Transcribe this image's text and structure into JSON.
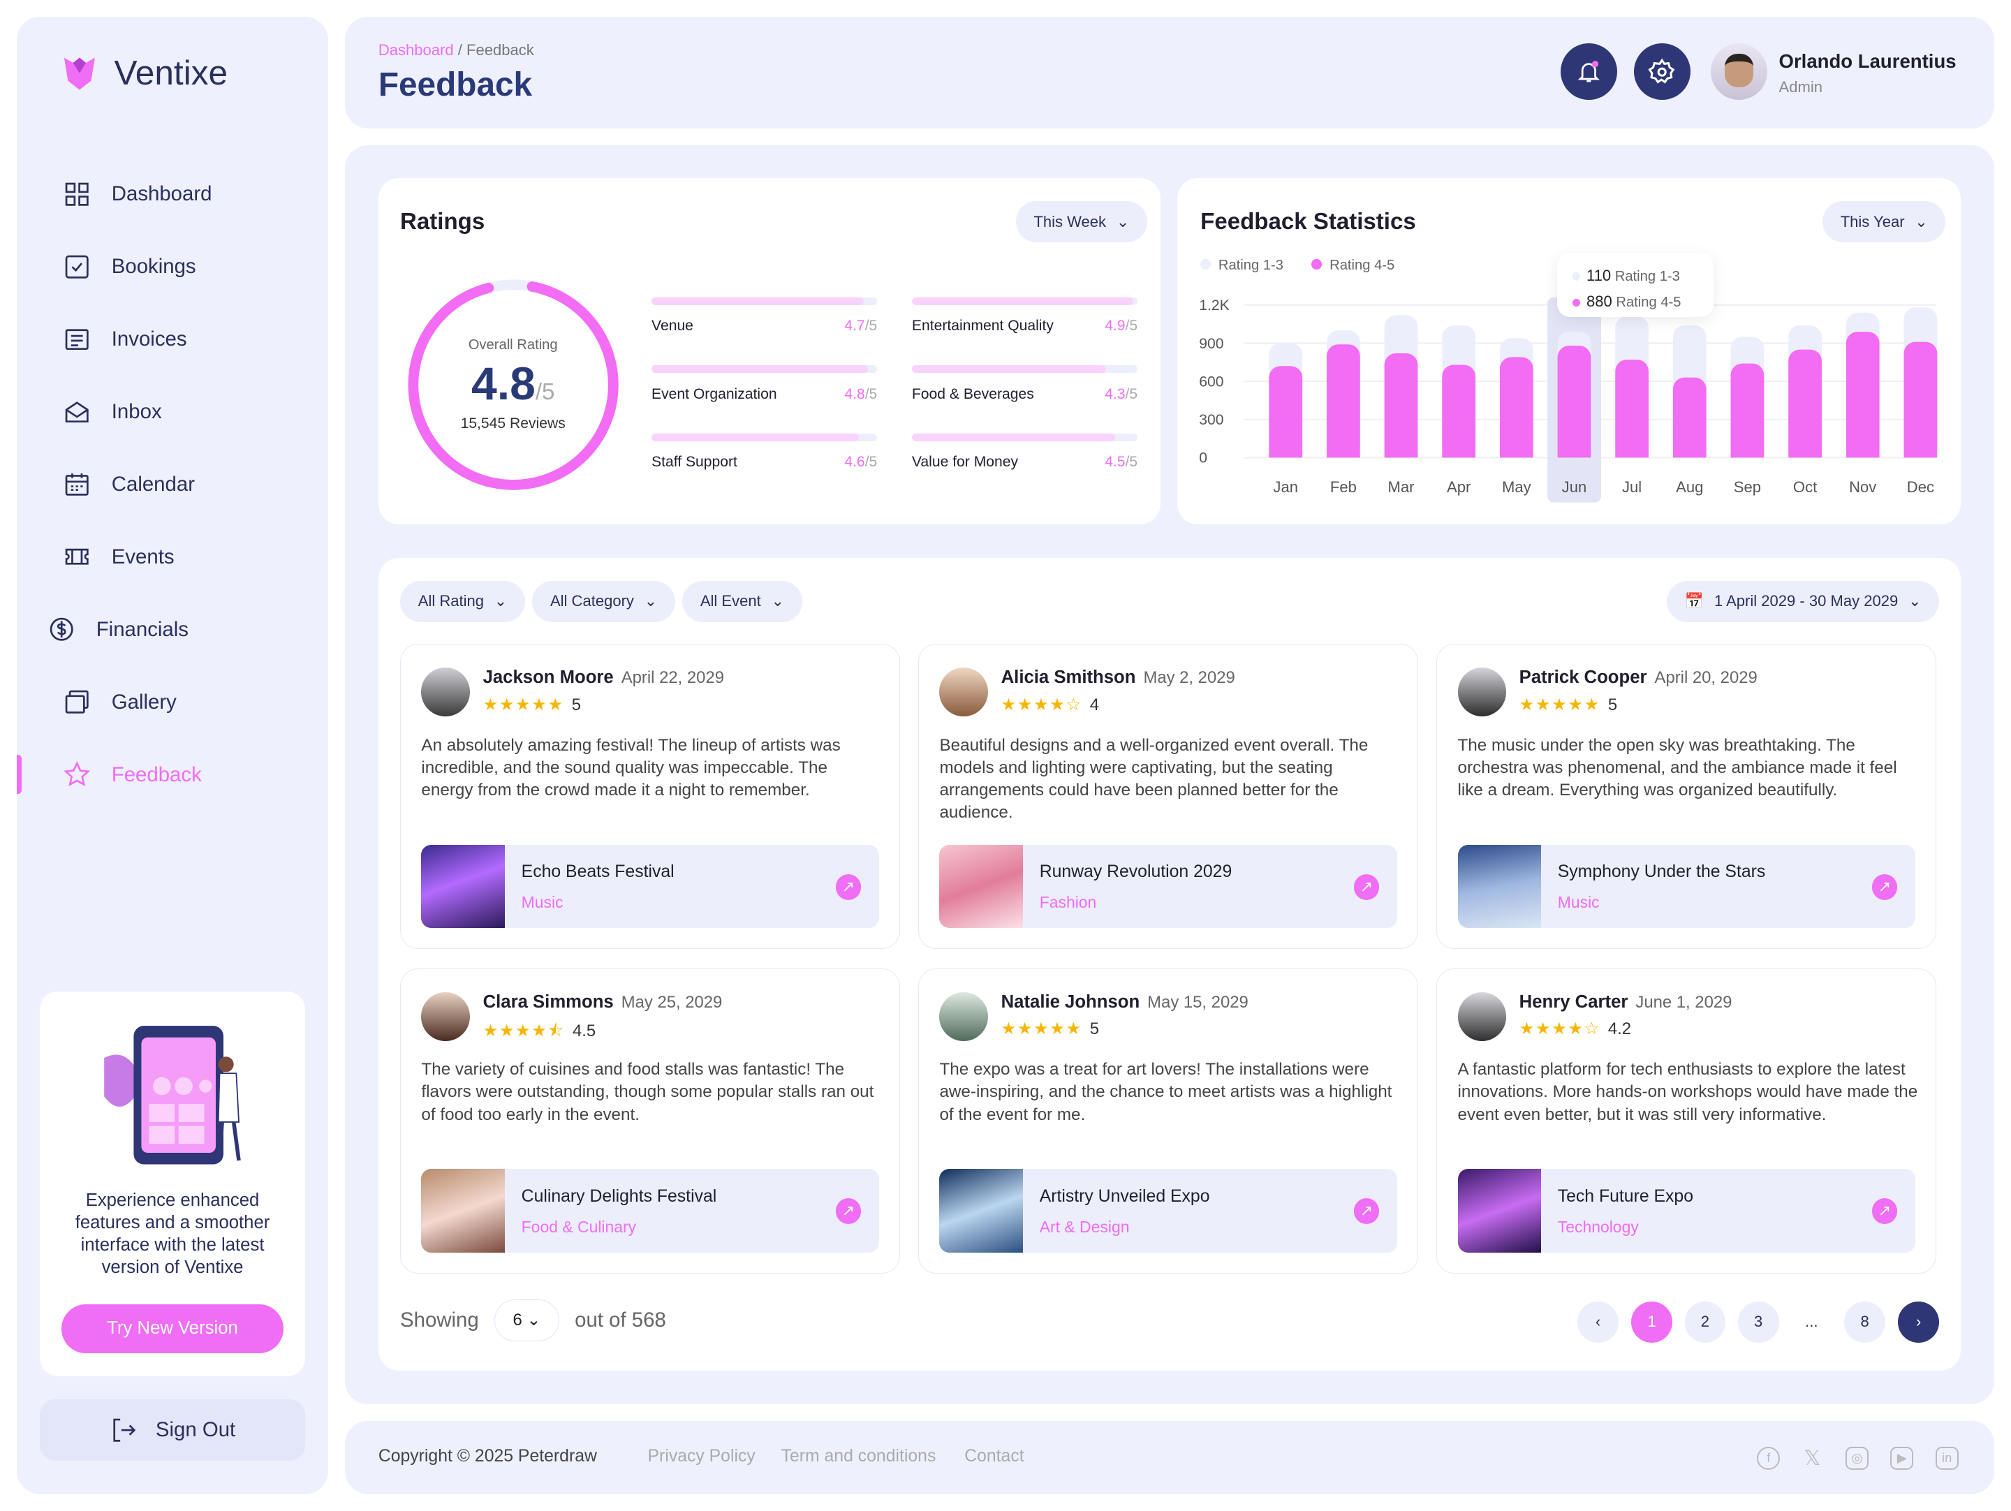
{
  "app": {
    "name": "Ventixe"
  },
  "sidebar": {
    "items": [
      {
        "label": "Dashboard",
        "icon": "grid-icon"
      },
      {
        "label": "Bookings",
        "icon": "check-square-icon"
      },
      {
        "label": "Invoices",
        "icon": "invoice-icon"
      },
      {
        "label": "Inbox",
        "icon": "mail-icon"
      },
      {
        "label": "Calendar",
        "icon": "calendar-icon"
      },
      {
        "label": "Events",
        "icon": "ticket-icon"
      },
      {
        "label": "Financials",
        "icon": "dollar-icon"
      },
      {
        "label": "Gallery",
        "icon": "gallery-icon"
      },
      {
        "label": "Feedback",
        "icon": "star-icon"
      }
    ],
    "promo": {
      "text": "Experience enhanced features and a smoother interface with the latest version of Ventixe",
      "button": "Try New Version"
    },
    "signout": "Sign Out"
  },
  "header": {
    "breadcrumb_root": "Dashboard",
    "breadcrumb_sep": "/",
    "breadcrumb_current": "Feedback",
    "title": "Feedback",
    "user": {
      "name": "Orlando Laurentius",
      "role": "Admin"
    }
  },
  "ratings": {
    "title": "Ratings",
    "period": "This Week",
    "overall_label": "Overall Rating",
    "overall": "4.8",
    "overall_max": "/5",
    "reviews": "15,545 Reviews",
    "overall_value": 4.8,
    "categories": [
      {
        "label": "Venue",
        "value": "4.7",
        "max": "/5",
        "v": 4.7
      },
      {
        "label": "Entertainment Quality",
        "value": "4.9",
        "max": "/5",
        "v": 4.9
      },
      {
        "label": "Event Organization",
        "value": "4.8",
        "max": "/5",
        "v": 4.8
      },
      {
        "label": "Food & Beverages",
        "value": "4.3",
        "max": "/5",
        "v": 4.3
      },
      {
        "label": "Staff Support",
        "value": "4.6",
        "max": "/5",
        "v": 4.6
      },
      {
        "label": "Value for Money",
        "value": "4.5",
        "max": "/5",
        "v": 4.5
      }
    ]
  },
  "chart_data": {
    "type": "bar",
    "title": "Feedback Statistics",
    "period": "This Year",
    "stacked": true,
    "categories": [
      "Jan",
      "Feb",
      "Mar",
      "Apr",
      "May",
      "Jun",
      "Jul",
      "Aug",
      "Sep",
      "Oct",
      "Nov",
      "Dec"
    ],
    "series": [
      {
        "name": "Rating 1-3",
        "color": "#eceefc",
        "values": [
          180,
          110,
          300,
          310,
          150,
          110,
          340,
          410,
          210,
          190,
          150,
          270
        ]
      },
      {
        "name": "Rating 4-5",
        "color": "#f26cf4",
        "values": [
          720,
          890,
          820,
          730,
          790,
          880,
          770,
          630,
          740,
          850,
          990,
          910
        ]
      }
    ],
    "yticks": [
      "0",
      "300",
      "600",
      "900",
      "1.2K"
    ],
    "ylim": [
      0,
      1200
    ],
    "highlight": "Jun",
    "tooltip": {
      "v1": "110",
      "l1": "Rating 1-3",
      "v2": "880",
      "l2": "Rating 4-5"
    }
  },
  "filters": {
    "rating": "All Rating",
    "category": "All Category",
    "event": "All Event",
    "date": "1 April 2029 - 30 May 2029"
  },
  "reviews": [
    {
      "name": "Jackson Moore",
      "date": "April 22, 2029",
      "stars": "★★★★★",
      "rating": "5",
      "text": "An absolutely amazing festival! The lineup of artists was incredible, and the sound quality was impeccable. The energy from the crowd made it a night to remember.",
      "event": "Echo Beats Festival",
      "category": "Music"
    },
    {
      "name": "Alicia Smithson",
      "date": "May 2, 2029",
      "stars": "★★★★☆",
      "rating": "4",
      "text": "Beautiful designs and a well-organized event overall. The models and lighting were captivating, but the seating arrangements could have been planned better for the audience.",
      "event": "Runway Revolution 2029",
      "category": "Fashion"
    },
    {
      "name": "Patrick Cooper",
      "date": "April 20, 2029",
      "stars": "★★★★★",
      "rating": "5",
      "text": "The music under the open sky was breathtaking. The orchestra was phenomenal, and the ambiance made it feel like a dream. Everything was organized beautifully.",
      "event": "Symphony Under the Stars",
      "category": "Music"
    },
    {
      "name": "Clara Simmons",
      "date": "May 25, 2029",
      "stars": "★★★★⯪",
      "rating": "4.5",
      "text": "The variety of cuisines and food stalls was fantastic! The flavors were outstanding, though some popular stalls ran out of food too early in the event.",
      "event": "Culinary Delights Festival",
      "category": "Food & Culinary"
    },
    {
      "name": "Natalie Johnson",
      "date": "May 15, 2029",
      "stars": "★★★★★",
      "rating": "5",
      "text": "The expo was a treat for art lovers! The installations were awe-inspiring, and the chance to meet artists was a highlight of the event for me.",
      "event": "Artistry Unveiled Expo",
      "category": "Art & Design"
    },
    {
      "name": "Henry Carter",
      "date": "June 1, 2029",
      "stars": "★★★★☆",
      "rating": "4.2",
      "text": "A fantastic platform for tech enthusiasts to explore the latest innovations. More hands-on workshops would have made the event even better, but it was still very informative.",
      "event": "Tech Future Expo",
      "category": "Technology"
    }
  ],
  "pagination": {
    "showing": "Showing",
    "per_page": "6",
    "out_of": "out of 568",
    "pages": [
      "1",
      "2",
      "3",
      "...",
      "8"
    ],
    "current": "1"
  },
  "footer": {
    "copyright": "Copyright © 2025 Peterdraw",
    "links": [
      "Privacy Policy",
      "Term and conditions",
      "Contact"
    ]
  }
}
